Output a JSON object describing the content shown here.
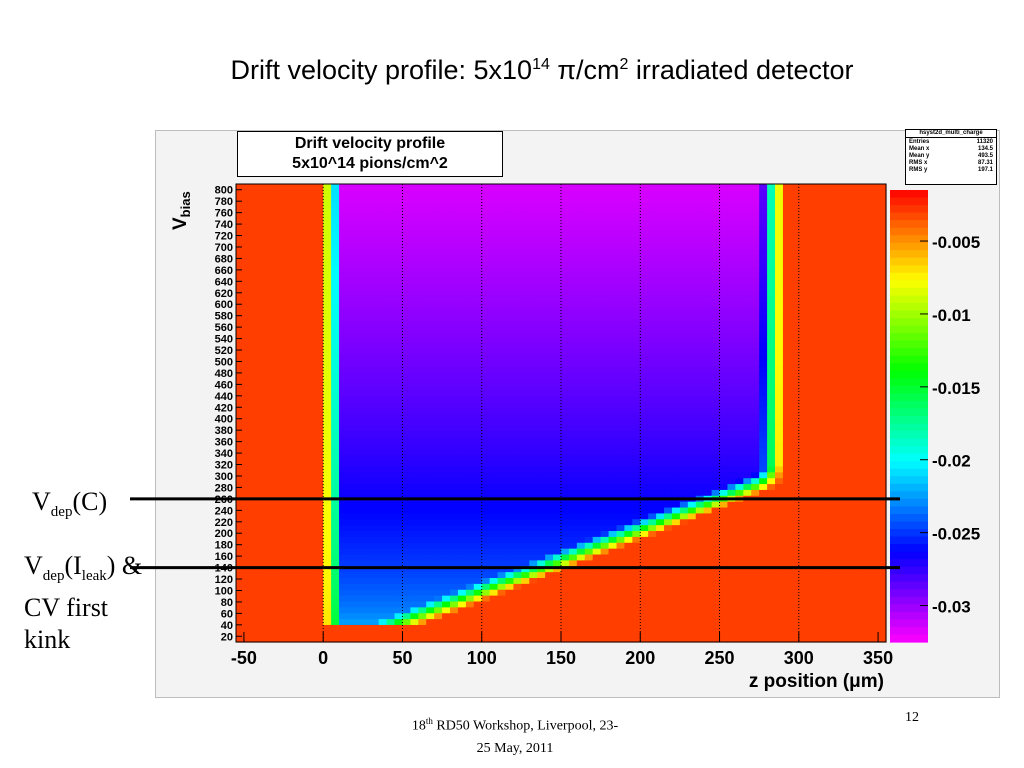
{
  "slide": {
    "title_main": "Drift velocity profile: 5x10",
    "title_exp": "14",
    "title_mid": " π/cm",
    "title_exp2": "2",
    "title_end": " irradiated detector",
    "footer_pre": "18",
    "footer_sup": "th",
    "footer_line1": " RD50 Workshop, Liverpool, 23-",
    "footer_line2": "25 May, 2011",
    "page_number": "12"
  },
  "annotations": {
    "vdep_c": {
      "v": "V",
      "sub": "dep",
      "rest": "(C)"
    },
    "vdep_ileak": {
      "v": "V",
      "sub": "dep",
      "open": "(I",
      "sub2": "leak",
      "rest": ") &"
    },
    "cv_line1": "CV first",
    "cv_line2": "kink"
  },
  "chart_data": {
    "type": "heatmap",
    "title": "Drift velocity profile",
    "subtitle": "5x10^14 pions/cm^2",
    "xlabel": "z position (μm)",
    "ylabel": "V",
    "ylabel_sub": "bias",
    "xlim": [
      -55,
      355
    ],
    "ylim": [
      10,
      810
    ],
    "x_ticks": [
      -50,
      0,
      50,
      100,
      150,
      200,
      250,
      300,
      350
    ],
    "y_ticks": [
      20,
      40,
      60,
      80,
      100,
      120,
      140,
      160,
      180,
      200,
      220,
      240,
      260,
      280,
      300,
      320,
      340,
      360,
      380,
      400,
      420,
      440,
      460,
      480,
      500,
      520,
      540,
      560,
      580,
      600,
      620,
      640,
      660,
      680,
      700,
      720,
      740,
      760,
      780,
      800
    ],
    "color_scale": {
      "range": [
        -0.0325,
        -0.0015
      ],
      "ticks": [
        -0.005,
        -0.01,
        -0.015,
        -0.02,
        -0.025,
        -0.03
      ],
      "tick_labels": [
        "-0.005",
        "-0.01",
        "-0.015",
        "-0.02",
        "-0.025",
        "-0.03"
      ],
      "palette": [
        "#ff00ff",
        "#8000ff",
        "#0000ff",
        "#0080ff",
        "#00ffff",
        "#00ff80",
        "#00ff00",
        "#80ff00",
        "#ffff00",
        "#ff8000",
        "#ff0000"
      ]
    },
    "z_values_description": "",
    "vertical_guides_x": [
      0,
      50,
      100,
      150,
      200,
      250,
      300
    ],
    "horizontal_markers": [
      {
        "label": "Vdep(C)",
        "y": 260
      },
      {
        "label": "Vdep(Ileak) & CV first kink",
        "y": 140
      }
    ],
    "stats": {
      "name": "hsyst2d_multi_charge",
      "rows": [
        {
          "key": "Entries",
          "value": "11320"
        },
        {
          "key": "Mean x",
          "value": "134.5"
        },
        {
          "key": "Mean y",
          "value": "493.5"
        },
        {
          "key": "RMS x",
          "value": "87.31"
        },
        {
          "key": "RMS y",
          "value": "197.1"
        }
      ]
    }
  }
}
